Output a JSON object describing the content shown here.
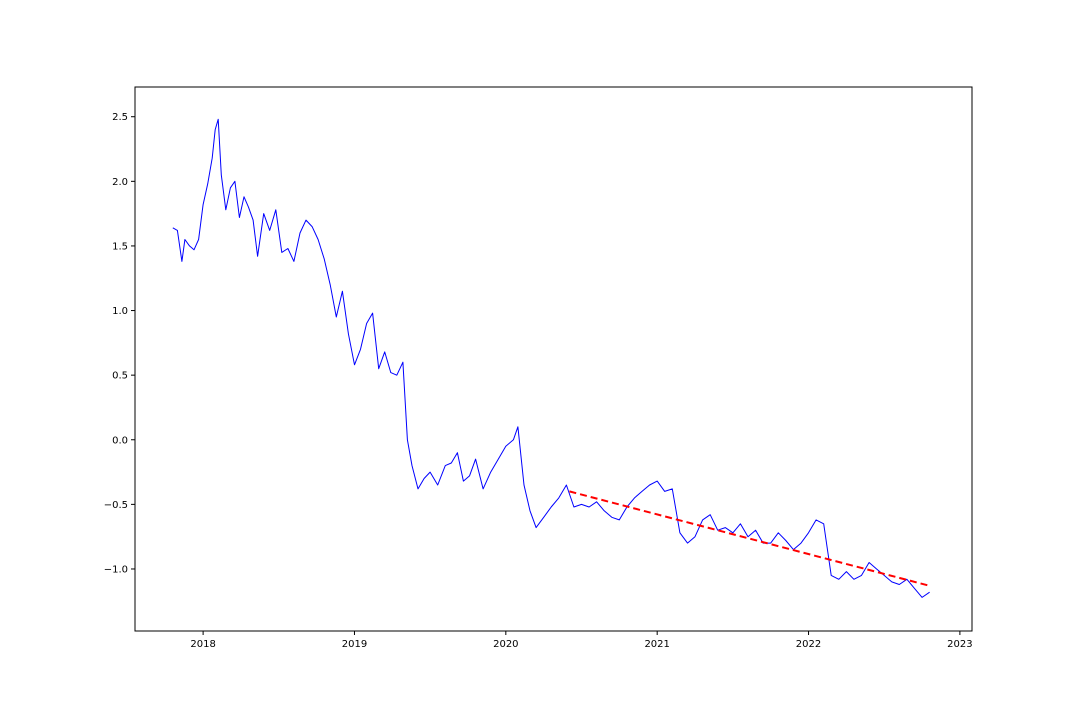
{
  "chart_data": {
    "type": "line",
    "title": "",
    "xlabel": "",
    "ylabel": "",
    "x_ticks": [
      "2018",
      "2019",
      "2020",
      "2021",
      "2022",
      "2023"
    ],
    "x_tick_positions": [
      2018.0,
      2019.0,
      2020.0,
      2021.0,
      2022.0,
      2023.0
    ],
    "y_ticks": [
      "2.5",
      "2.0",
      "1.5",
      "1.0",
      "0.5",
      "0.0",
      "−0.5",
      "−1.0"
    ],
    "y_tick_values": [
      2.5,
      2.0,
      1.5,
      1.0,
      0.5,
      0.0,
      -0.5,
      -1.0
    ],
    "xlim": [
      2017.55,
      2023.08
    ],
    "ylim": [
      -1.48,
      2.73
    ],
    "grid": false,
    "legend": "none",
    "series": [
      {
        "color": "#0000ff",
        "style": "solid",
        "x": [
          2017.8,
          2017.83,
          2017.86,
          2017.88,
          2017.91,
          2017.94,
          2017.97,
          2018.0,
          2018.03,
          2018.06,
          2018.08,
          2018.1,
          2018.12,
          2018.15,
          2018.18,
          2018.21,
          2018.24,
          2018.27,
          2018.3,
          2018.33,
          2018.36,
          2018.4,
          2018.44,
          2018.48,
          2018.52,
          2018.56,
          2018.6,
          2018.64,
          2018.68,
          2018.72,
          2018.76,
          2018.8,
          2018.84,
          2018.88,
          2018.92,
          2018.96,
          2019.0,
          2019.04,
          2019.08,
          2019.12,
          2019.16,
          2019.2,
          2019.24,
          2019.28,
          2019.32,
          2019.35,
          2019.38,
          2019.42,
          2019.46,
          2019.5,
          2019.55,
          2019.6,
          2019.64,
          2019.68,
          2019.72,
          2019.76,
          2019.8,
          2019.85,
          2019.9,
          2019.95,
          2020.0,
          2020.05,
          2020.08,
          2020.12,
          2020.16,
          2020.2,
          2020.25,
          2020.3,
          2020.35,
          2020.4,
          2020.45,
          2020.5,
          2020.55,
          2020.6,
          2020.65,
          2020.7,
          2020.75,
          2020.8,
          2020.85,
          2020.9,
          2020.95,
          2021.0,
          2021.05,
          2021.1,
          2021.15,
          2021.2,
          2021.25,
          2021.3,
          2021.35,
          2021.4,
          2021.45,
          2021.5,
          2021.55,
          2021.6,
          2021.65,
          2021.7,
          2021.75,
          2021.8,
          2021.85,
          2021.9,
          2021.95,
          2022.0,
          2022.05,
          2022.1,
          2022.15,
          2022.2,
          2022.25,
          2022.3,
          2022.35,
          2022.4,
          2022.45,
          2022.5,
          2022.55,
          2022.6,
          2022.65,
          2022.7,
          2022.75,
          2022.8
        ],
        "y": [
          1.64,
          1.62,
          1.38,
          1.55,
          1.5,
          1.47,
          1.55,
          1.82,
          1.98,
          2.18,
          2.4,
          2.48,
          2.05,
          1.78,
          1.95,
          2.0,
          1.72,
          1.88,
          1.8,
          1.7,
          1.42,
          1.75,
          1.62,
          1.78,
          1.45,
          1.48,
          1.38,
          1.6,
          1.7,
          1.65,
          1.55,
          1.4,
          1.2,
          0.95,
          1.15,
          0.82,
          0.58,
          0.7,
          0.9,
          0.98,
          0.55,
          0.68,
          0.52,
          0.5,
          0.6,
          0.0,
          -0.2,
          -0.38,
          -0.3,
          -0.25,
          -0.35,
          -0.2,
          -0.18,
          -0.1,
          -0.32,
          -0.28,
          -0.15,
          -0.38,
          -0.25,
          -0.15,
          -0.05,
          0.0,
          0.1,
          -0.35,
          -0.55,
          -0.68,
          -0.6,
          -0.52,
          -0.45,
          -0.35,
          -0.52,
          -0.5,
          -0.52,
          -0.48,
          -0.55,
          -0.6,
          -0.62,
          -0.52,
          -0.45,
          -0.4,
          -0.35,
          -0.32,
          -0.4,
          -0.38,
          -0.72,
          -0.8,
          -0.75,
          -0.62,
          -0.58,
          -0.7,
          -0.68,
          -0.72,
          -0.65,
          -0.75,
          -0.7,
          -0.8,
          -0.8,
          -0.72,
          -0.78,
          -0.85,
          -0.8,
          -0.72,
          -0.62,
          -0.65,
          -1.05,
          -1.08,
          -1.02,
          -1.08,
          -1.05,
          -0.95,
          -1.0,
          -1.05,
          -1.1,
          -1.12,
          -1.08,
          -1.15,
          -1.22,
          -1.18
        ]
      },
      {
        "color": "#ff0000",
        "style": "dashed",
        "x": [
          2020.42,
          2022.8
        ],
        "y": [
          -0.4,
          -1.13
        ]
      }
    ]
  }
}
